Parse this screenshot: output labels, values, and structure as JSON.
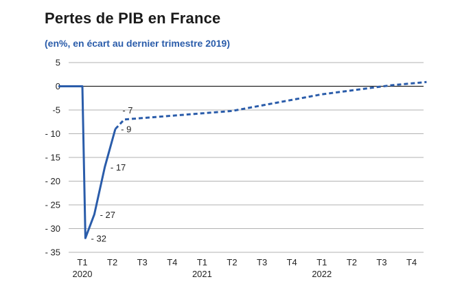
{
  "title": "Pertes de PIB en France",
  "subtitle": "(en%, en écart au dernier trimestre 2019)",
  "colors": {
    "series": "#2a5caa",
    "grid": "#999999",
    "zero": "#222222",
    "text": "#222222"
  },
  "chart_data": {
    "type": "line",
    "ylim": [
      -35,
      5
    ],
    "yticks": [
      5,
      0,
      -5,
      -10,
      -15,
      -20,
      -25,
      -30,
      -35
    ],
    "ytick_labels": [
      "5",
      "0",
      "-5",
      "- 10",
      "- 15",
      "- 20",
      "- 25",
      "- 30",
      "- 35"
    ],
    "xlim": [
      -1,
      10.3
    ],
    "xticks": [
      {
        "x": 0,
        "label": "T1",
        "year": "2020"
      },
      {
        "x": 1,
        "label": "T2",
        "year": ""
      },
      {
        "x": 2,
        "label": "T3",
        "year": ""
      },
      {
        "x": 3,
        "label": "T4",
        "year": ""
      },
      {
        "x": 4,
        "label": "T1",
        "year": "2021"
      },
      {
        "x": 5,
        "label": "T2",
        "year": ""
      },
      {
        "x": 6,
        "label": "T3",
        "year": ""
      },
      {
        "x": 7,
        "label": "T4",
        "year": ""
      },
      {
        "x": 8,
        "label": "T1",
        "year": "2022"
      },
      {
        "x": 9,
        "label": "T2",
        "year": ""
      },
      {
        "x": 10,
        "label": "T3",
        "year": ""
      },
      {
        "x": 11,
        "label": "T4",
        "year": ""
      }
    ],
    "grid": true,
    "series": [
      {
        "style": "solid",
        "points": [
          [
            -0.8,
            0
          ],
          [
            0,
            0
          ],
          [
            0.1,
            -32
          ],
          [
            0.4,
            -27
          ],
          [
            0.75,
            -17
          ],
          [
            1.1,
            -9
          ]
        ]
      },
      {
        "style": "dashed",
        "points": [
          [
            1.1,
            -9
          ],
          [
            1.4,
            -7
          ],
          [
            5,
            -5.2
          ],
          [
            8,
            -1.7
          ],
          [
            10.3,
            0.2
          ],
          [
            11.5,
            0.9
          ]
        ]
      }
    ],
    "annotations": [
      {
        "x": 0.15,
        "y": -32,
        "text": "- 32"
      },
      {
        "x": 0.45,
        "y": -27,
        "text": "- 27"
      },
      {
        "x": 0.8,
        "y": -17,
        "text": "- 17"
      },
      {
        "x": 1.15,
        "y": -9,
        "text": "- 9"
      },
      {
        "x": 1.2,
        "y": -5,
        "text": "- 7"
      }
    ]
  }
}
